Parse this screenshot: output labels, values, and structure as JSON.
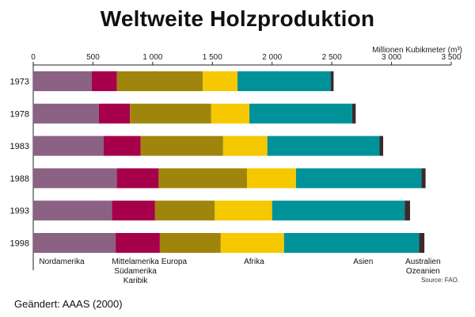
{
  "chart_data": {
    "type": "bar",
    "orientation": "horizontal",
    "stacked": true,
    "title": "Weltweite Holzproduktion",
    "unit": "Millionen Kubikmeter (m³)",
    "categories": [
      "1973",
      "1978",
      "1983",
      "1988",
      "1993",
      "1998"
    ],
    "xlim": [
      0,
      3500
    ],
    "xticks": [
      0,
      500,
      1000,
      1500,
      2000,
      2500,
      3000,
      3500
    ],
    "xtick_labels": [
      "0",
      "500",
      "1 000",
      "1 500",
      "2 000",
      "2 500",
      "3 000",
      "3 500"
    ],
    "grid": false,
    "legend_placement": "bottom, under the bars",
    "series": [
      {
        "name": "Nordamerika",
        "color": "#8b6283",
        "values": [
          490,
          550,
          590,
          700,
          660,
          690
        ]
      },
      {
        "name": "Mittelamerika Südamerika Karibik",
        "color": "#a6004a",
        "values": [
          210,
          260,
          310,
          350,
          360,
          370
        ]
      },
      {
        "name": "Europa",
        "color": "#a0850c",
        "values": [
          720,
          680,
          690,
          740,
          500,
          510
        ]
      },
      {
        "name": "Afrika",
        "color": "#f5c800",
        "values": [
          290,
          320,
          370,
          410,
          480,
          530
        ]
      },
      {
        "name": "Asien",
        "color": "#009299",
        "values": [
          780,
          860,
          940,
          1050,
          1110,
          1130
        ]
      },
      {
        "name": "Australien Ozeanien",
        "color": "#3b2a2d",
        "values": [
          25,
          30,
          30,
          35,
          45,
          45
        ]
      }
    ],
    "legend_labels": [
      {
        "lines": [
          "Nordamerika"
        ]
      },
      {
        "lines": [
          "Mittelamerika",
          "Südamerika",
          "Karibik"
        ]
      },
      {
        "lines": [
          "Europa"
        ]
      },
      {
        "lines": [
          "Afrika"
        ]
      },
      {
        "lines": [
          "Asien"
        ]
      },
      {
        "lines": [
          "Australien",
          "Ozeanien"
        ]
      }
    ]
  },
  "source": "Source: FAO.",
  "note": "Geändert: AAAS (2000)"
}
